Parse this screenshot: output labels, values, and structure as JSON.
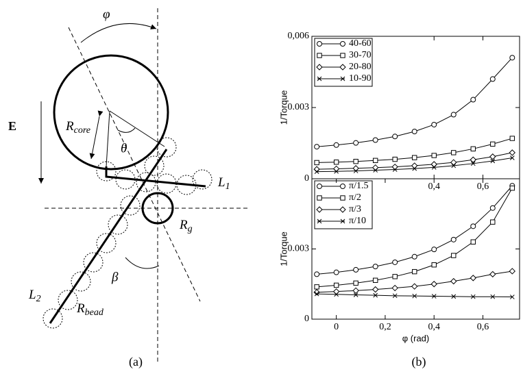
{
  "diagram": {
    "labels": {
      "phi": "φ",
      "field": "E",
      "r_core": {
        "main": "R",
        "sub": "core"
      },
      "theta": "θ",
      "l1": {
        "main": "L",
        "sub": "1"
      },
      "r_g": {
        "main": "R",
        "sub": "g"
      },
      "beta": "β",
      "l2": {
        "main": "L",
        "sub": "2"
      },
      "r_bead": {
        "main": "R",
        "sub": "bead"
      }
    },
    "caption": "(a)"
  },
  "chart_caption": "(b)",
  "chart_data": [
    {
      "type": "line",
      "ylabel": "1/Torque",
      "x": [
        -0.08,
        0,
        0.08,
        0.16,
        0.24,
        0.32,
        0.4,
        0.48,
        0.56,
        0.64,
        0.72
      ],
      "xlim": [
        -0.1,
        0.75
      ],
      "ylim": [
        0,
        0.006
      ],
      "xticks": [
        {
          "value": 0.4,
          "label": "0,4"
        },
        {
          "value": 0.6,
          "label": "0,6"
        }
      ],
      "yticks": [
        0,
        0.003,
        {
          "value": 0.006,
          "label": "0,006"
        }
      ],
      "series": [
        {
          "name": "40-60",
          "color": "#000000",
          "marker": "circle",
          "values": [
            0.00135,
            0.00142,
            0.00151,
            0.00163,
            0.00178,
            0.00199,
            0.00228,
            0.0027,
            0.00333,
            0.0042,
            0.0051
          ]
        },
        {
          "name": "30-70",
          "color": "#000000",
          "marker": "square",
          "values": [
            0.00068,
            0.0007,
            0.00073,
            0.00077,
            0.00082,
            0.00089,
            0.00098,
            0.0011,
            0.00126,
            0.00146,
            0.0017
          ]
        },
        {
          "name": "20-80",
          "color": "#000000",
          "marker": "diamond",
          "values": [
            0.0004,
            0.00042,
            0.00044,
            0.00047,
            0.0005,
            0.00055,
            0.00061,
            0.00069,
            0.0008,
            0.00093,
            0.0011
          ]
        },
        {
          "name": "10-90",
          "color": "#000000",
          "marker": "cross",
          "values": [
            0.0003,
            0.00031,
            0.00033,
            0.00036,
            0.00039,
            0.00043,
            0.00048,
            0.00055,
            0.00064,
            0.00075,
            0.00088
          ]
        }
      ]
    },
    {
      "type": "line",
      "ylabel": "1/Torque",
      "xlabel": "φ (rad)",
      "x": [
        -0.08,
        0,
        0.08,
        0.16,
        0.24,
        0.32,
        0.4,
        0.48,
        0.56,
        0.64,
        0.72
      ],
      "xlim": [
        -0.1,
        0.75
      ],
      "ylim": [
        0,
        0.006
      ],
      "xticks": [
        0,
        {
          "value": 0.2,
          "label": "0,2"
        },
        {
          "value": 0.4,
          "label": "0,4"
        },
        {
          "value": 0.6,
          "label": "0,6"
        }
      ],
      "yticks": [
        0,
        0.003
      ],
      "series": [
        {
          "name": "π/1.5",
          "color": "#000000",
          "marker": "circle",
          "values": [
            0.00192,
            0.002,
            0.00211,
            0.00225,
            0.00243,
            0.00267,
            0.00298,
            0.0034,
            0.00397,
            0.00475,
            0.0057
          ]
        },
        {
          "name": "π/2",
          "color": "#000000",
          "marker": "square",
          "values": [
            0.00138,
            0.00145,
            0.00154,
            0.00166,
            0.00182,
            0.00203,
            0.00232,
            0.00272,
            0.0033,
            0.00415,
            0.0056
          ]
        },
        {
          "name": "π/3",
          "color": "#000000",
          "marker": "diamond",
          "values": [
            0.00115,
            0.00118,
            0.00122,
            0.00127,
            0.00133,
            0.0014,
            0.0015,
            0.00162,
            0.00176,
            0.00192,
            0.00205
          ]
        },
        {
          "name": "π/10",
          "color": "#000000",
          "marker": "cross",
          "values": [
            0.00108,
            0.00106,
            0.00104,
            0.00102,
            0.001,
            0.00099,
            0.00098,
            0.00097,
            0.00096,
            0.00096,
            0.00095
          ]
        }
      ]
    }
  ]
}
